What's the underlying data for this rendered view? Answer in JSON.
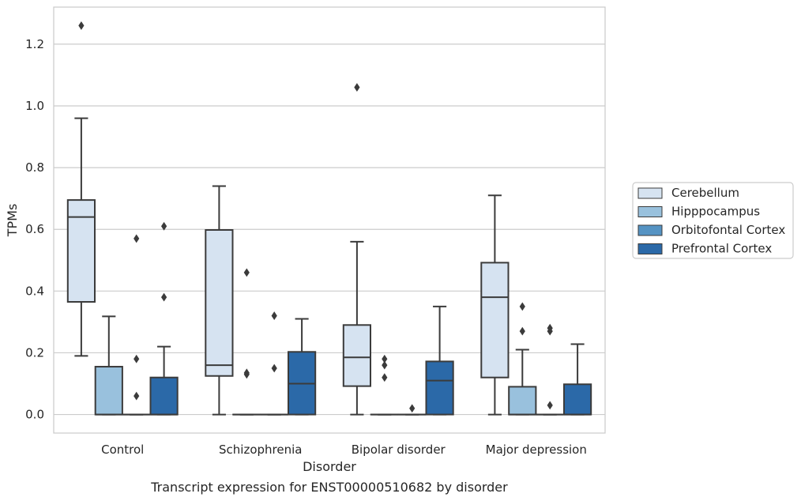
{
  "chart_data": {
    "type": "boxplot",
    "title": "",
    "caption": "Transcript expression for ENST00000510682 by disorder",
    "xlabel": "Disorder",
    "ylabel": "TPMs",
    "ylim": [
      -0.06,
      1.32
    ],
    "yticks": [
      "0.0",
      "0.2",
      "0.4",
      "0.6",
      "0.8",
      "1.0",
      "1.2"
    ],
    "ytick_values": [
      0.0,
      0.2,
      0.4,
      0.6,
      0.8,
      1.0,
      1.2
    ],
    "grid": true,
    "legend_position": "right",
    "categories": [
      "Control",
      "Schizophrenia",
      "Bipolar disorder",
      "Major depression"
    ],
    "series": [
      {
        "name": "Cerebellum",
        "color": "#d6e3f1",
        "boxes": [
          {
            "whislo": 0.19,
            "q1": 0.365,
            "med": 0.64,
            "q3": 0.695,
            "whishi": 0.96,
            "fliers": [
              1.26
            ]
          },
          {
            "whislo": 0.0,
            "q1": 0.125,
            "med": 0.16,
            "q3": 0.598,
            "whishi": 0.74,
            "fliers": []
          },
          {
            "whislo": 0.0,
            "q1": 0.092,
            "med": 0.185,
            "q3": 0.29,
            "whishi": 0.56,
            "fliers": [
              1.06
            ]
          },
          {
            "whislo": 0.0,
            "q1": 0.12,
            "med": 0.38,
            "q3": 0.492,
            "whishi": 0.71,
            "fliers": []
          }
        ]
      },
      {
        "name": "Hipppocampus",
        "color": "#99c1dd",
        "boxes": [
          {
            "whislo": 0.0,
            "q1": 0.0,
            "med": 0.0,
            "q3": 0.155,
            "whishi": 0.318,
            "fliers": []
          },
          {
            "whislo": 0.0,
            "q1": 0.0,
            "med": 0.0,
            "q3": 0.0,
            "whishi": 0.0,
            "fliers": [
              0.46,
              0.13,
              0.135
            ]
          },
          {
            "whislo": 0.0,
            "q1": 0.0,
            "med": 0.0,
            "q3": 0.0,
            "whishi": 0.0,
            "fliers": [
              0.18,
              0.16,
              0.12
            ]
          },
          {
            "whislo": 0.0,
            "q1": 0.0,
            "med": 0.0,
            "q3": 0.09,
            "whishi": 0.21,
            "fliers": [
              0.35,
              0.27
            ]
          }
        ]
      },
      {
        "name": "Orbitofontal Cortex",
        "color": "#5593c3",
        "boxes": [
          {
            "whislo": 0.0,
            "q1": 0.0,
            "med": 0.0,
            "q3": 0.0,
            "whishi": 0.0,
            "fliers": [
              0.57,
              0.18,
              0.06
            ]
          },
          {
            "whislo": 0.0,
            "q1": 0.0,
            "med": 0.0,
            "q3": 0.0,
            "whishi": 0.0,
            "fliers": [
              0.32,
              0.15
            ]
          },
          {
            "whislo": 0.0,
            "q1": 0.0,
            "med": 0.0,
            "q3": 0.0,
            "whishi": 0.0,
            "fliers": [
              0.02
            ]
          },
          {
            "whislo": 0.0,
            "q1": 0.0,
            "med": 0.0,
            "q3": 0.0,
            "whishi": 0.0,
            "fliers": [
              0.28,
              0.27,
              0.03
            ]
          }
        ]
      },
      {
        "name": "Prefrontal Cortex",
        "color": "#2b69a8",
        "boxes": [
          {
            "whislo": 0.0,
            "q1": 0.0,
            "med": 0.0,
            "q3": 0.12,
            "whishi": 0.22,
            "fliers": [
              0.61,
              0.38
            ]
          },
          {
            "whislo": 0.0,
            "q1": 0.0,
            "med": 0.1,
            "q3": 0.203,
            "whishi": 0.31,
            "fliers": []
          },
          {
            "whislo": 0.0,
            "q1": 0.0,
            "med": 0.11,
            "q3": 0.172,
            "whishi": 0.35,
            "fliers": []
          },
          {
            "whislo": 0.0,
            "q1": 0.0,
            "med": 0.0,
            "q3": 0.098,
            "whishi": 0.228,
            "fliers": []
          }
        ]
      }
    ]
  }
}
